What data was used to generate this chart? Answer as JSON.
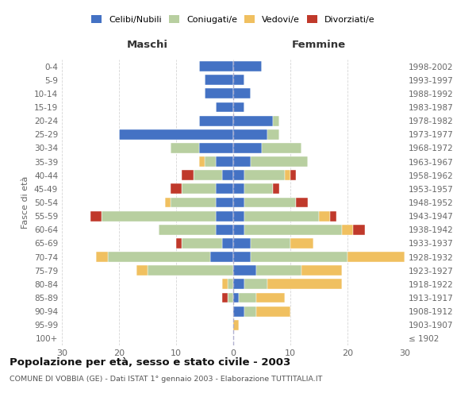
{
  "age_groups": [
    "100+",
    "95-99",
    "90-94",
    "85-89",
    "80-84",
    "75-79",
    "70-74",
    "65-69",
    "60-64",
    "55-59",
    "50-54",
    "45-49",
    "40-44",
    "35-39",
    "30-34",
    "25-29",
    "20-24",
    "15-19",
    "10-14",
    "5-9",
    "0-4"
  ],
  "birth_years": [
    "≤ 1902",
    "1903-1907",
    "1908-1912",
    "1913-1917",
    "1918-1922",
    "1923-1927",
    "1928-1932",
    "1933-1937",
    "1938-1942",
    "1943-1947",
    "1948-1952",
    "1953-1957",
    "1958-1962",
    "1963-1967",
    "1968-1972",
    "1973-1977",
    "1978-1982",
    "1983-1987",
    "1988-1992",
    "1993-1997",
    "1998-2002"
  ],
  "colors": {
    "celibi": "#4472c4",
    "coniugati": "#b8cfa0",
    "vedovi": "#f0c060",
    "divorziati": "#c0392b"
  },
  "maschi": {
    "celibi": [
      0,
      0,
      0,
      0,
      0,
      0,
      4,
      2,
      3,
      3,
      3,
      3,
      2,
      3,
      6,
      20,
      6,
      3,
      5,
      5,
      6
    ],
    "coniugati": [
      0,
      0,
      0,
      1,
      1,
      15,
      18,
      7,
      10,
      20,
      8,
      6,
      5,
      2,
      5,
      0,
      0,
      0,
      0,
      0,
      0
    ],
    "vedovi": [
      0,
      0,
      0,
      0,
      1,
      2,
      2,
      0,
      0,
      0,
      1,
      0,
      0,
      1,
      0,
      0,
      0,
      0,
      0,
      0,
      0
    ],
    "divorziati": [
      0,
      0,
      0,
      1,
      0,
      0,
      0,
      1,
      0,
      2,
      0,
      2,
      2,
      0,
      0,
      0,
      0,
      0,
      0,
      0,
      0
    ]
  },
  "femmine": {
    "celibi": [
      0,
      0,
      2,
      1,
      2,
      4,
      3,
      3,
      2,
      2,
      2,
      2,
      2,
      3,
      5,
      6,
      7,
      2,
      3,
      2,
      5
    ],
    "coniugati": [
      0,
      0,
      2,
      3,
      4,
      8,
      17,
      7,
      17,
      13,
      9,
      5,
      7,
      10,
      7,
      2,
      1,
      0,
      0,
      0,
      0
    ],
    "vedovi": [
      0,
      1,
      6,
      5,
      13,
      7,
      10,
      4,
      2,
      2,
      0,
      0,
      1,
      0,
      0,
      0,
      0,
      0,
      0,
      0,
      0
    ],
    "divorziati": [
      0,
      0,
      0,
      0,
      0,
      0,
      0,
      0,
      2,
      1,
      2,
      1,
      1,
      0,
      0,
      0,
      0,
      0,
      0,
      0,
      0
    ]
  },
  "title": "Popolazione per età, sesso e stato civile - 2003",
  "subtitle": "COMUNE DI VOBBIA (GE) - Dati ISTAT 1° gennaio 2003 - Elaborazione TUTTITALIA.IT",
  "header_left": "Maschi",
  "header_right": "Femmine",
  "ylabel_left": "Fasce di età",
  "xlim": 30,
  "legend_labels": [
    "Celibi/Nubili",
    "Coniugati/e",
    "Vedovi/e",
    "Divorziati/e"
  ],
  "background_color": "#ffffff",
  "grid_color": "#cccccc",
  "text_color": "#666666",
  "bar_height": 0.75
}
